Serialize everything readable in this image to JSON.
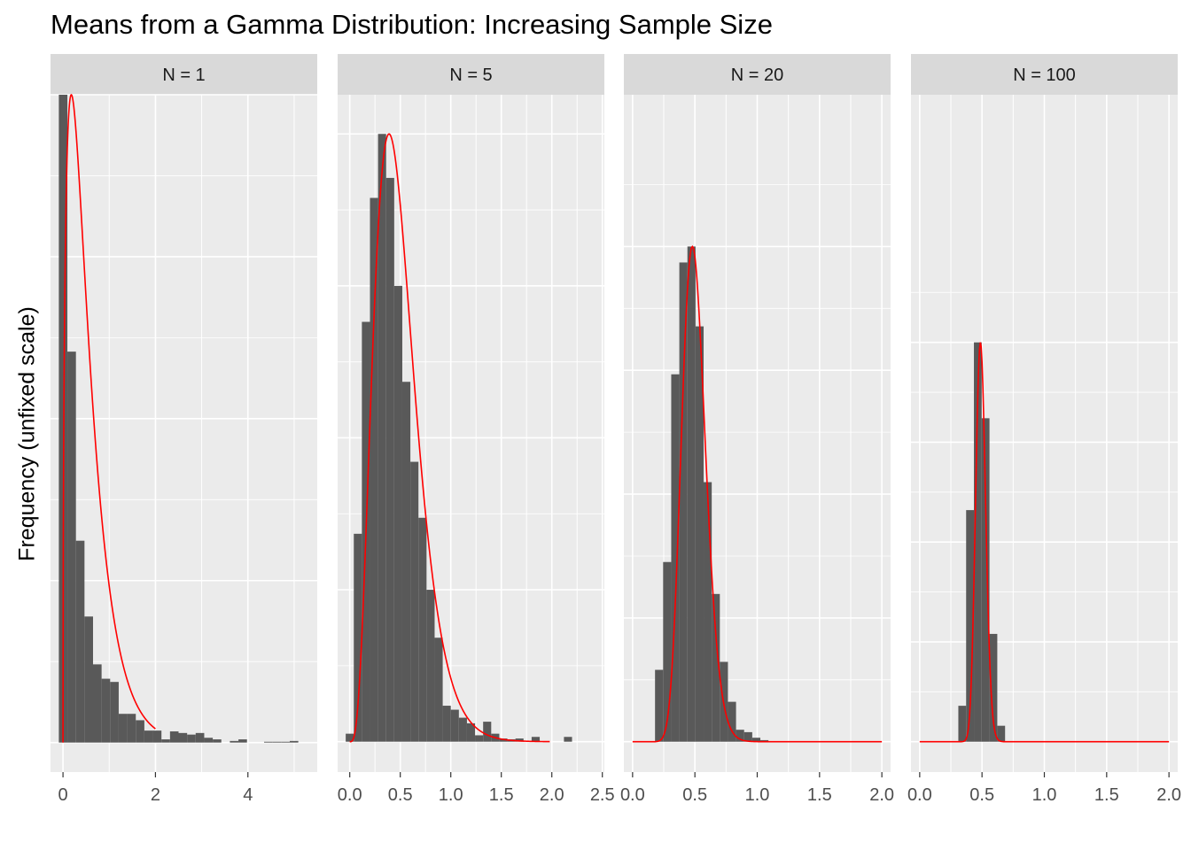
{
  "chart_data": {
    "type": "histogram-facets",
    "title": "Means from a Gamma Distribution: Increasing Sample Size",
    "ylabel": "Frequency (unfixed scale)",
    "xlabel": "",
    "colors": {
      "bar": "#595959",
      "curve": "#ff0000",
      "panel": "#ebebeb",
      "strip": "#d9d9d9",
      "grid": "#ffffff"
    },
    "panels": [
      {
        "label": "N = 1",
        "xlim": [
          -0.27,
          5.5
        ],
        "ylim": [
          -37,
          812
        ],
        "xticks": [
          0,
          2,
          4
        ],
        "xtick_labels": [
          "0",
          "2",
          "4"
        ],
        "bin_start": -0.09,
        "bin_width": 0.185,
        "counts": [
          812,
          490,
          253,
          158,
          98,
          80,
          76,
          36,
          36,
          28,
          15,
          15,
          4,
          14,
          12,
          10,
          12,
          6,
          4,
          0,
          2,
          4,
          0,
          0,
          1,
          1,
          1,
          2
        ],
        "curve": {
          "shape": 1.5,
          "scale": 0.36,
          "x0": 0,
          "x1": 2.0
        }
      },
      {
        "label": "N = 5",
        "xlim": [
          -0.12,
          2.52
        ],
        "ylim": [
          -38,
          809
        ],
        "xticks": [
          0,
          0.5,
          1,
          1.5,
          2,
          2.5
        ],
        "xtick_labels": [
          "0.0",
          "0.5",
          "1.0",
          "1.5",
          "2.0",
          "2.5"
        ],
        "bin_start": -0.04,
        "bin_width": 0.08,
        "counts": [
          10,
          260,
          525,
          680,
          760,
          705,
          570,
          450,
          350,
          280,
          190,
          130,
          45,
          40,
          30,
          23,
          8,
          25,
          10,
          4,
          3,
          4,
          0,
          6,
          0,
          0,
          0,
          6
        ],
        "curve": {
          "shape": 4.6,
          "scale": 0.108,
          "x0": 0,
          "x1": 1.98
        }
      },
      {
        "label": "N = 20",
        "xlim": [
          -0.07,
          2.07
        ],
        "ylim": [
          -38,
          810
        ],
        "xticks": [
          0,
          0.5,
          1,
          1.5,
          2
        ],
        "xtick_labels": [
          "0.0",
          "0.5",
          "1.0",
          "1.5",
          "2.0"
        ],
        "bin_start": 0.18,
        "bin_width": 0.065,
        "counts": [
          90,
          225,
          460,
          600,
          620,
          520,
          325,
          185,
          100,
          50,
          15,
          12,
          5,
          2
        ],
        "curve": {
          "shape": 26,
          "scale": 0.0192,
          "x0": 0,
          "x1": 2.0
        }
      },
      {
        "label": "N = 100",
        "xlim": [
          -0.07,
          2.07
        ],
        "ylim": [
          -38,
          810
        ],
        "xticks": [
          0,
          0.5,
          1,
          1.5,
          2
        ],
        "xtick_labels": [
          "0.0",
          "0.5",
          "1.0",
          "1.5",
          "2.0"
        ],
        "bin_start": 0.31,
        "bin_width": 0.0625,
        "counts": [
          45,
          290,
          500,
          405,
          135,
          20
        ],
        "curve": {
          "shape": 150,
          "scale": 0.00327,
          "x0": 0,
          "x1": 2.0
        }
      }
    ]
  }
}
